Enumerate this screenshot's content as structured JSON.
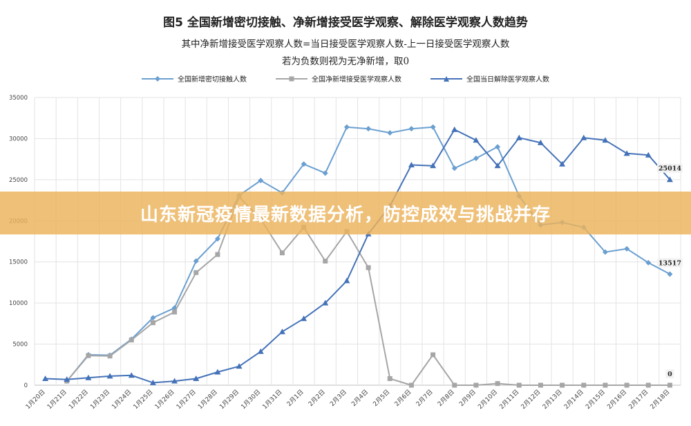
{
  "title": "图5  全国新增密切接触、净新增接受医学观察、解除医学观察人数趋势",
  "subtitle_1": "其中净新增接受医学观察人数=当日接受医学观察人数-上一日接受医学观察人数",
  "subtitle_2": "若为负数则视为无净新增，取0",
  "banner": "山东新冠疫情最新数据分析，防控成效与挑战并存",
  "chart_data": {
    "type": "line",
    "categories": [
      "1月20日",
      "1月21日",
      "1月22日",
      "1月23日",
      "1月24日",
      "1月25日",
      "1月26日",
      "1月27日",
      "1月28日",
      "1月29日",
      "1月30日",
      "1月31日",
      "2月1日",
      "2月2日",
      "2月3日",
      "2月4日",
      "2月5日",
      "2月6日",
      "2月7日",
      "2月8日",
      "2月9日",
      "2月10日",
      "2月11日",
      "2月12日",
      "2月13日",
      "2月14日",
      "2月15日",
      "2月16日",
      "2月17日",
      "2月18日"
    ],
    "ylim": [
      0,
      35000
    ],
    "yticks": [
      0,
      5000,
      10000,
      15000,
      20000,
      25000,
      30000,
      35000
    ],
    "grid": true,
    "legend_position": "top",
    "series": [
      {
        "name": "全国新增密切接触人数",
        "color": "#6a9fd0",
        "marker": "diamond",
        "values": [
          null,
          500,
          3700,
          3650,
          5600,
          8200,
          9400,
          15100,
          17800,
          23100,
          24900,
          23400,
          26900,
          25800,
          31400,
          31200,
          30700,
          31200,
          31400,
          26400,
          27600,
          29000,
          23000,
          19500,
          19800,
          19200,
          16200,
          16600,
          14900,
          13517
        ]
      },
      {
        "name": "全国净新增接受医学观察人数",
        "color": "#a6a6a6",
        "marker": "square",
        "values": [
          null,
          500,
          3600,
          3550,
          5500,
          7600,
          8900,
          13700,
          15900,
          22900,
          20200,
          16100,
          19200,
          15100,
          18700,
          14300,
          800,
          0,
          3700,
          0,
          0,
          200,
          0,
          0,
          0,
          0,
          0,
          0,
          0,
          0
        ]
      },
      {
        "name": "全国当日解除医学观察人数",
        "color": "#4472b8",
        "marker": "triangle",
        "values": [
          800,
          700,
          900,
          1100,
          1200,
          300,
          500,
          800,
          1600,
          2300,
          4100,
          6500,
          8100,
          10000,
          12700,
          18400,
          21800,
          26800,
          26700,
          31100,
          29800,
          26700,
          30100,
          29500,
          26900,
          30100,
          29800,
          28200,
          28000,
          25014
        ]
      }
    ],
    "data_labels": [
      {
        "series": 2,
        "index": 29,
        "text": "25014"
      },
      {
        "series": 0,
        "index": 29,
        "text": "13517"
      },
      {
        "series": 1,
        "index": 29,
        "text": "0"
      }
    ]
  }
}
